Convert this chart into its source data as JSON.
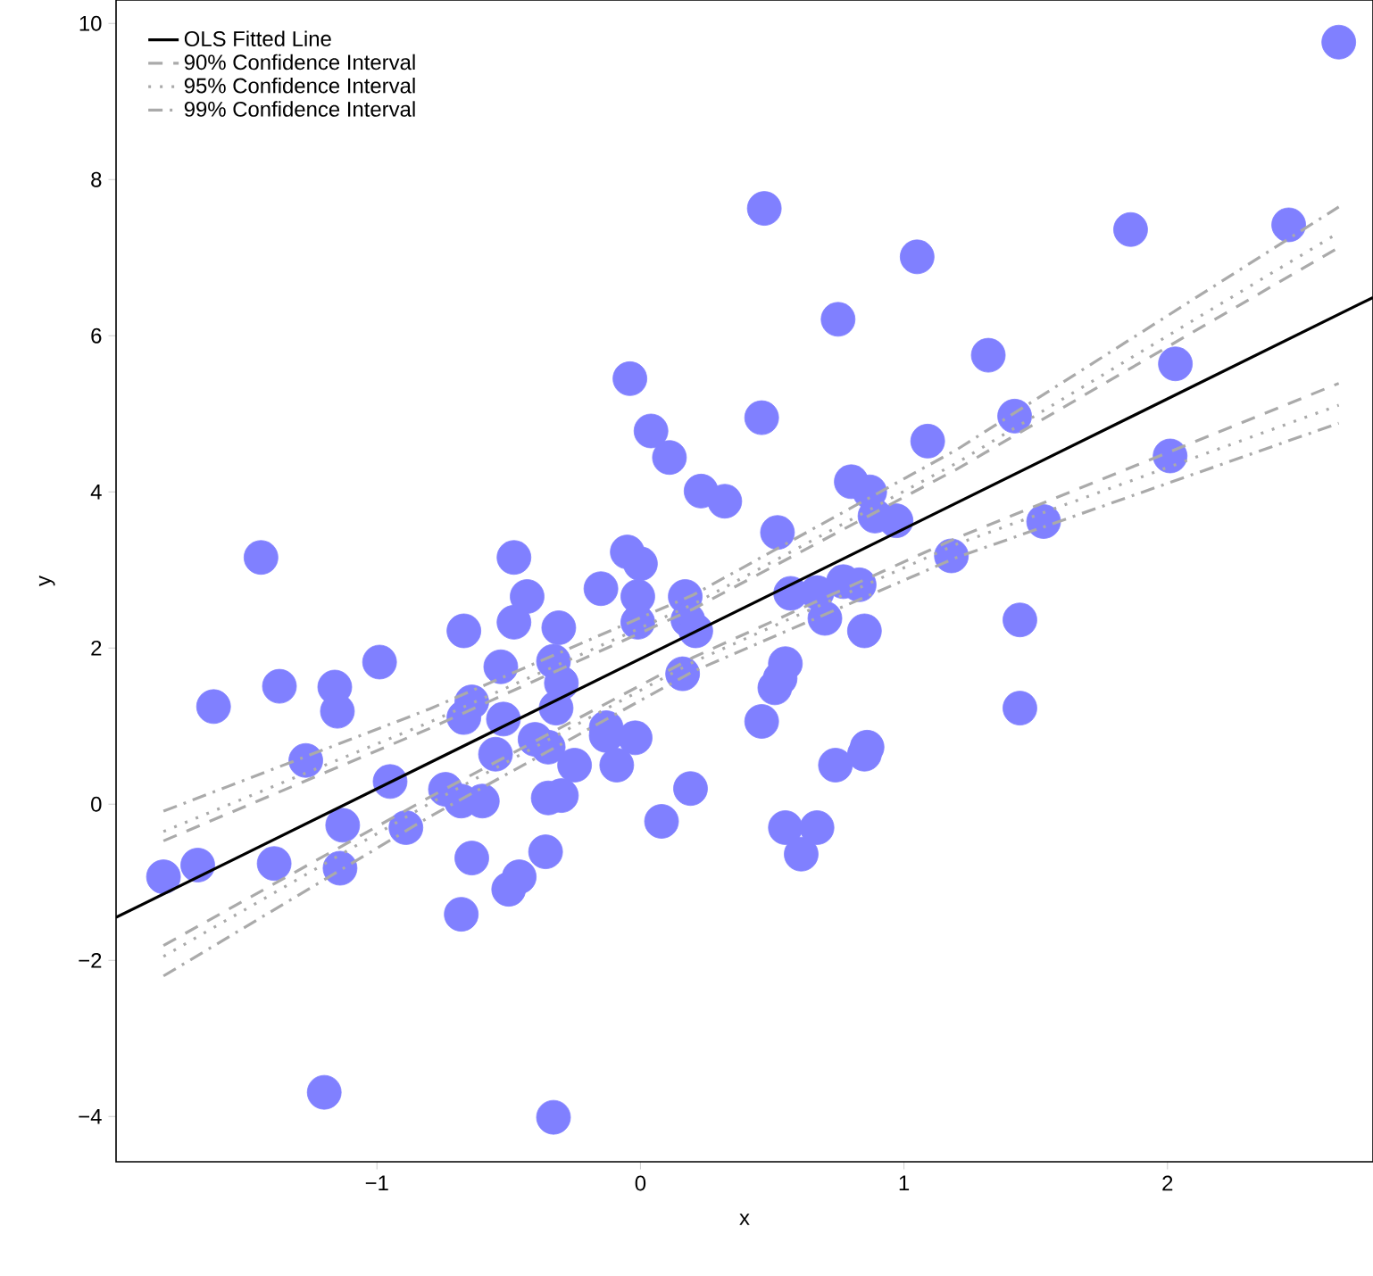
{
  "chart_data": {
    "type": "scatter",
    "xlabel": "x",
    "ylabel": "y",
    "xlim": [
      -1.99,
      2.78
    ],
    "ylim": [
      -4.58,
      10.3
    ],
    "xticks": [
      {
        "value": -1,
        "label": "−1"
      },
      0,
      1,
      2
    ],
    "yticks": [
      {
        "value": -4,
        "label": "−4"
      },
      {
        "value": -2,
        "label": "−2"
      },
      0,
      2,
      4,
      6,
      8,
      10
    ],
    "grid": false,
    "legend": "top left",
    "series": [
      {
        "type": "scatter",
        "color": "#8080ff",
        "marker": "circle",
        "x": [
          -0.04,
          0.04,
          0.11,
          0.23,
          0.32,
          -1.44,
          -0.48,
          -0.05,
          0.0,
          2.65,
          0.47,
          1.05,
          1.86,
          2.46,
          0.75,
          1.32,
          2.03,
          0.46,
          1.42,
          1.09,
          2.01,
          1.53,
          1.18,
          0.8,
          0.87,
          0.89,
          0.97,
          0.52,
          0.57,
          0.67,
          0.77,
          0.83,
          0.7,
          0.85,
          1.44,
          1.44,
          0.55,
          0.53,
          0.51,
          0.46,
          0.74,
          0.86,
          0.85,
          0.55,
          0.67,
          0.61,
          -1.62,
          -1.37,
          -1.16,
          -1.15,
          -0.99,
          -0.67,
          -0.48,
          -0.43,
          -0.31,
          -0.15,
          -0.01,
          0.17,
          -0.01,
          0.18,
          0.21,
          0.16,
          -0.53,
          -0.33,
          -0.3,
          -0.32,
          -0.64,
          -0.67,
          -0.52,
          -0.4,
          -0.35,
          -0.55,
          -0.25,
          -0.13,
          -0.13,
          -0.02,
          -0.09,
          0.19,
          0.08,
          -0.35,
          -0.3,
          -0.74,
          -0.68,
          -0.6,
          -0.95,
          -1.27,
          -1.13,
          -0.89,
          -1.81,
          -1.68,
          -1.39,
          -1.14,
          -0.64,
          -0.36,
          -0.46,
          -0.5,
          -0.68,
          -1.2,
          -0.33
        ],
        "values": [
          5.45,
          4.78,
          4.44,
          4.01,
          3.88,
          3.16,
          3.16,
          3.23,
          3.08,
          9.76,
          7.63,
          7.01,
          7.36,
          7.42,
          6.21,
          5.75,
          5.64,
          4.95,
          4.97,
          4.65,
          4.46,
          3.62,
          3.18,
          4.13,
          4.0,
          3.69,
          3.63,
          3.48,
          2.7,
          2.71,
          2.85,
          2.81,
          2.38,
          2.22,
          2.36,
          1.23,
          1.8,
          1.61,
          1.49,
          1.06,
          0.5,
          0.73,
          0.64,
          -0.3,
          -0.3,
          -0.64,
          1.25,
          1.51,
          1.5,
          1.19,
          1.82,
          2.22,
          2.33,
          2.66,
          2.26,
          2.76,
          2.66,
          2.66,
          2.33,
          2.36,
          2.22,
          1.67,
          1.76,
          1.83,
          1.55,
          1.23,
          1.31,
          1.11,
          1.09,
          0.83,
          0.73,
          0.64,
          0.5,
          0.98,
          0.88,
          0.85,
          0.5,
          0.2,
          -0.22,
          0.08,
          0.11,
          0.19,
          0.04,
          0.04,
          0.29,
          0.56,
          -0.27,
          -0.3,
          -0.93,
          -0.78,
          -0.76,
          -0.82,
          -0.69,
          -0.61,
          -0.93,
          -1.09,
          -1.41,
          -3.69,
          -4.01
        ]
      },
      {
        "type": "line",
        "name": "OLS Fitted Line",
        "color": "#000000",
        "line_style": "solid",
        "x": [
          -1.99,
          2.78
        ],
        "values": [
          -1.45,
          6.49
        ]
      },
      {
        "type": "line",
        "name": "90% Confidence Interval",
        "color": "#aaaaaa",
        "line_style": "dashed",
        "x": [
          -1.81,
          -0.8,
          0.2,
          1.2,
          2.65
        ],
        "values": [
          -0.47,
          0.97,
          2.5,
          4.29,
          7.13
        ]
      },
      {
        "type": "line",
        "name": "95% Confidence Interval",
        "color": "#aaaaaa",
        "line_style": "dotted",
        "x": [
          -1.81,
          -0.8,
          0.2,
          1.2,
          2.65
        ],
        "values": [
          -0.35,
          1.05,
          2.56,
          4.37,
          7.32
        ]
      },
      {
        "type": "line",
        "name": "99% Confidence Interval",
        "color": "#aaaaaa",
        "line_style": "dashdot",
        "x": [
          -1.81,
          -0.8,
          0.2,
          1.2,
          2.65
        ],
        "values": [
          -0.09,
          1.22,
          2.68,
          4.54,
          7.65
        ]
      },
      {
        "type": "line",
        "color": "#aaaaaa",
        "line_style": "dashed",
        "x": [
          -1.81,
          -0.8,
          0.2,
          1.2,
          2.65
        ],
        "values": [
          -1.81,
          0.09,
          1.88,
          3.41,
          5.39
        ]
      },
      {
        "type": "line",
        "color": "#aaaaaa",
        "line_style": "dotted",
        "x": [
          -1.81,
          -0.8,
          0.2,
          1.2,
          2.65
        ],
        "values": [
          -1.95,
          0.01,
          1.82,
          3.33,
          5.11
        ]
      },
      {
        "type": "line",
        "color": "#aaaaaa",
        "line_style": "dashdot",
        "x": [
          -1.81,
          -0.8,
          0.2,
          1.2,
          2.65
        ],
        "values": [
          -2.2,
          -0.16,
          1.7,
          3.16,
          4.88
        ]
      }
    ]
  }
}
